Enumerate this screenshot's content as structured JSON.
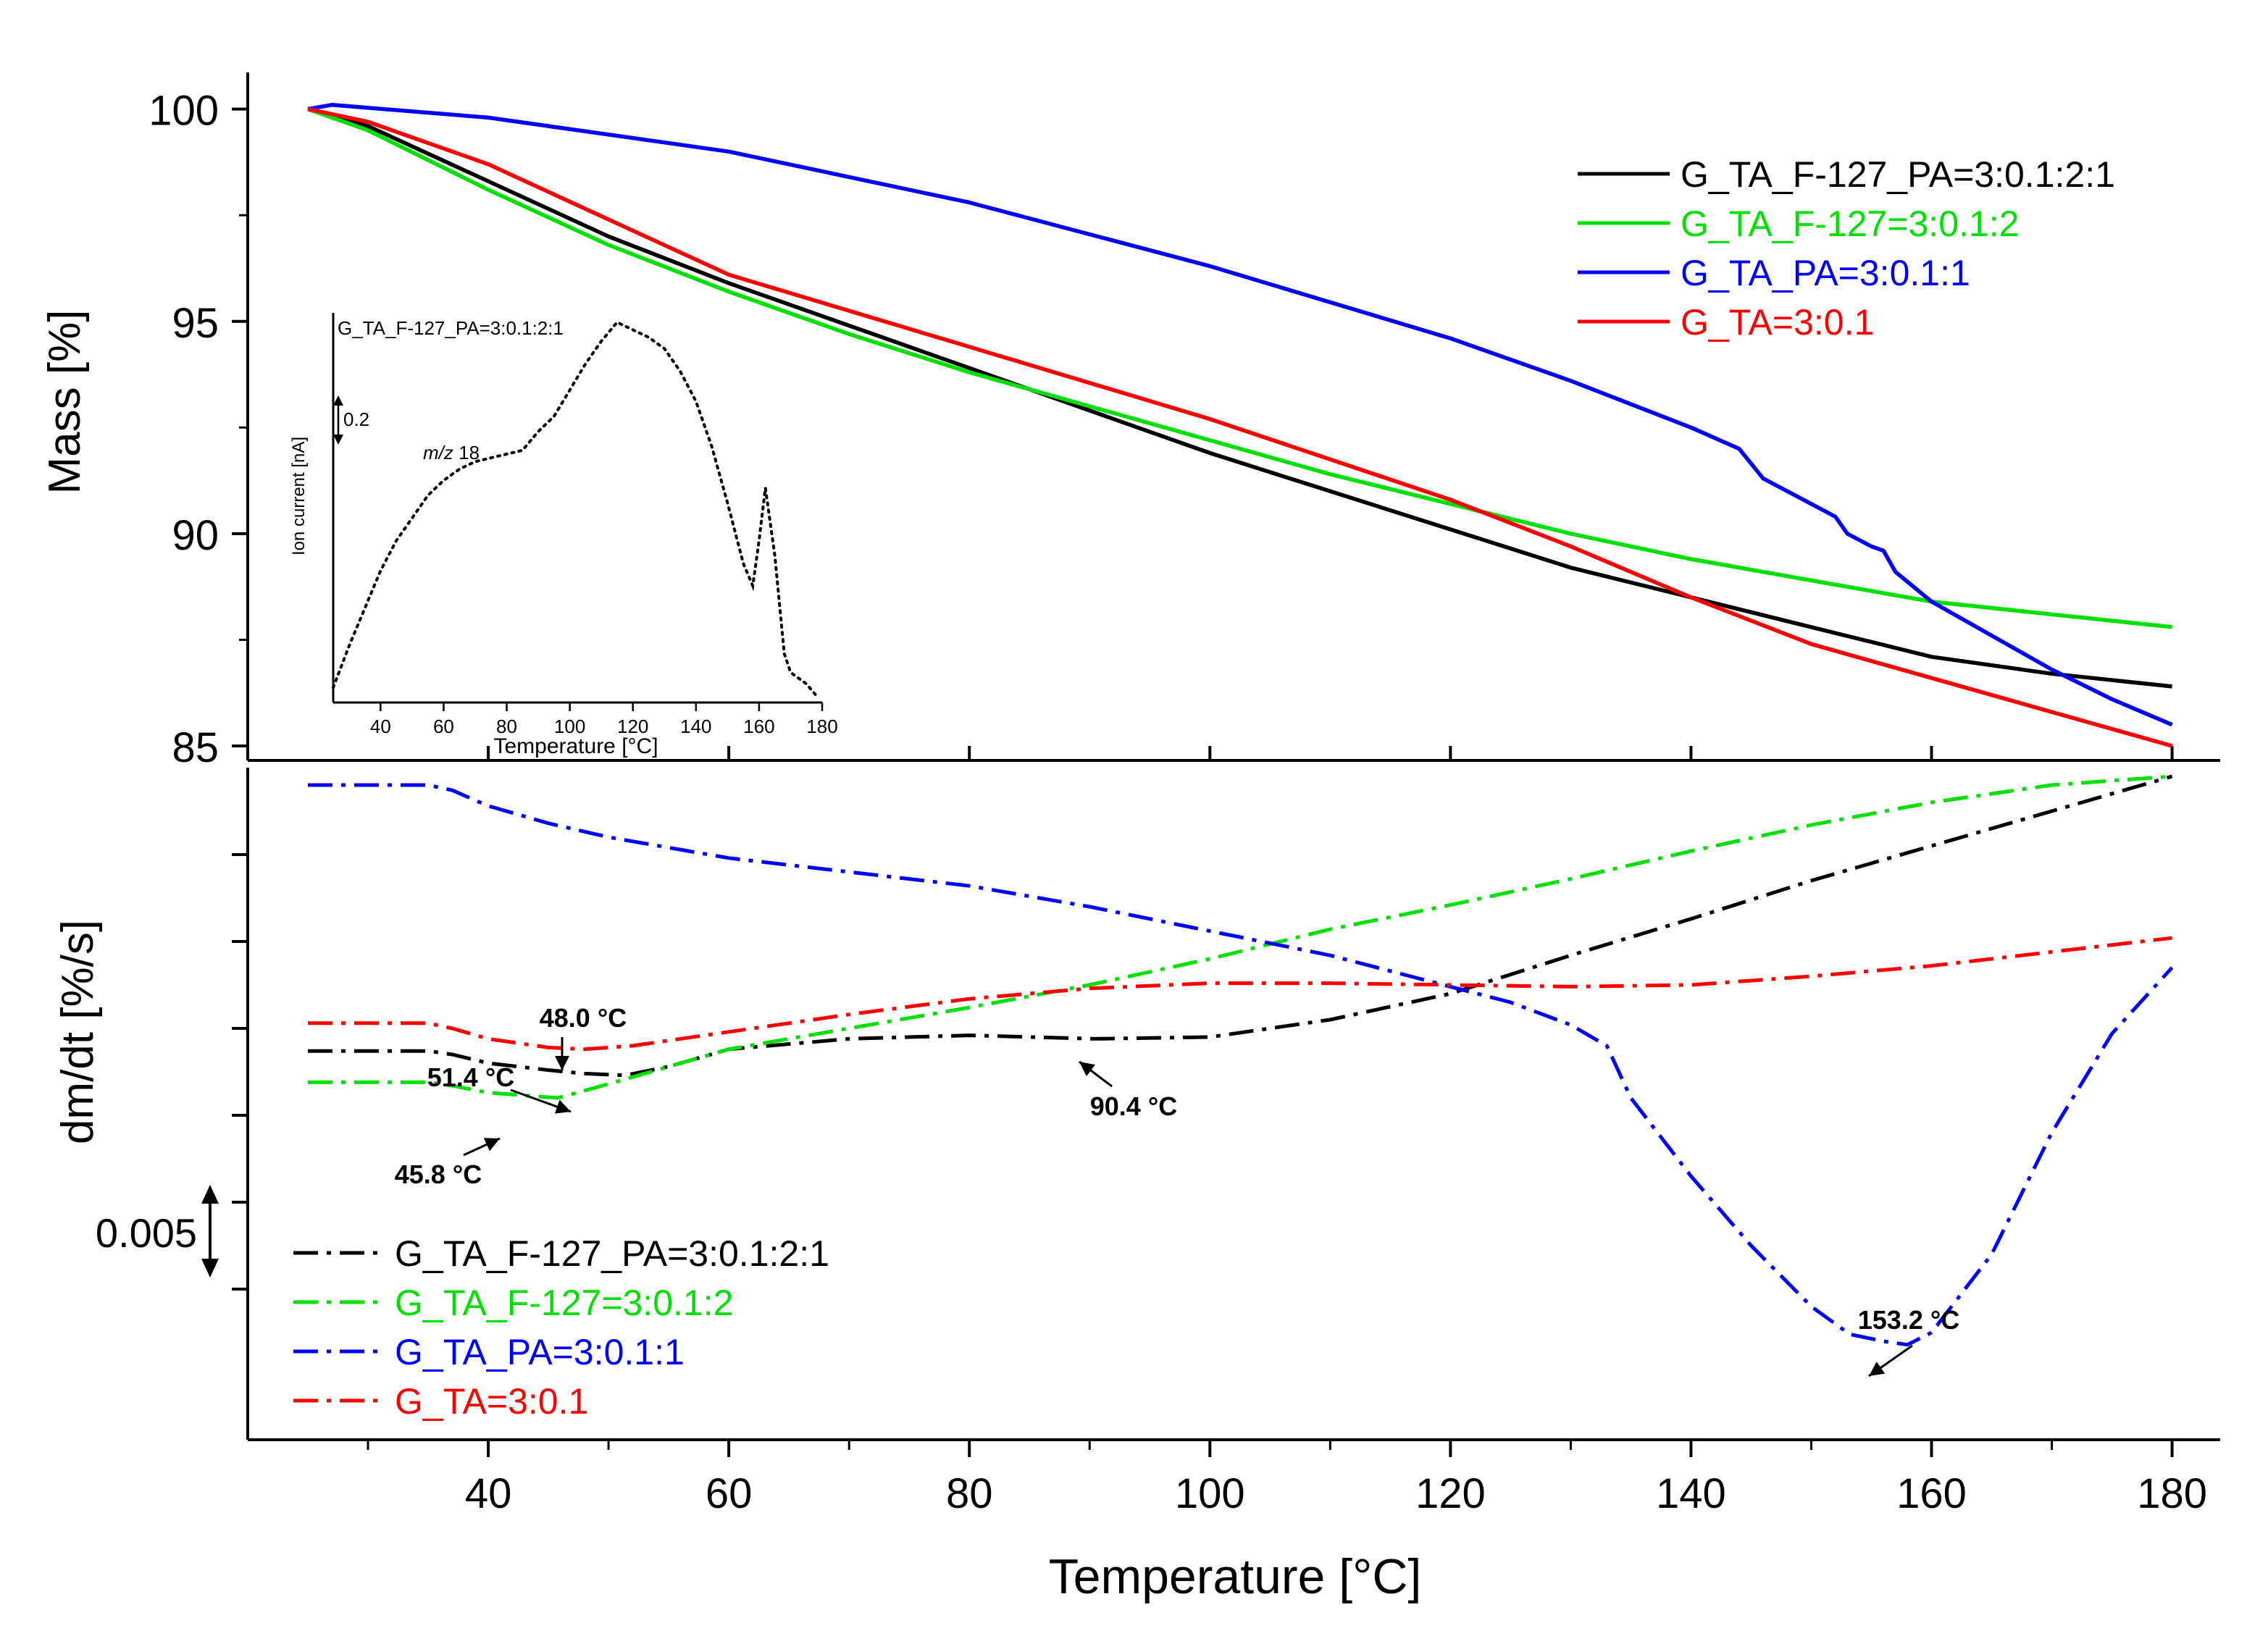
{
  "chart_data": [
    {
      "type": "line",
      "title": "",
      "ylabel": "Mass [%]",
      "xlabel": "Temperature [°C]",
      "xlim": [
        20,
        184
      ],
      "ylim": [
        85,
        101
      ],
      "x_ticks": [
        40,
        60,
        80,
        100,
        120,
        140,
        160,
        180
      ],
      "y_ticks": [
        85,
        90,
        95,
        100
      ],
      "legend_position": "top-right",
      "series": [
        {
          "name": "G_TA_F-127_PA=3:0.1:2:1",
          "color": "#000000",
          "x": [
            25,
            30,
            40,
            50,
            60,
            70,
            80,
            90,
            100,
            110,
            120,
            130,
            140,
            150,
            160,
            170,
            180
          ],
          "y": [
            100,
            99.6,
            98.3,
            97.0,
            95.9,
            94.9,
            93.9,
            92.9,
            91.9,
            91.0,
            90.1,
            89.2,
            88.5,
            87.8,
            87.1,
            86.7,
            86.4
          ]
        },
        {
          "name": "G_TA_F-127=3:0.1:2",
          "color": "#00e000",
          "x": [
            25,
            30,
            40,
            50,
            60,
            70,
            80,
            90,
            100,
            110,
            120,
            130,
            140,
            150,
            160,
            170,
            180
          ],
          "y": [
            100,
            99.5,
            98.1,
            96.8,
            95.7,
            94.7,
            93.8,
            93.0,
            92.2,
            91.4,
            90.7,
            90.0,
            89.4,
            88.9,
            88.4,
            88.1,
            87.8
          ]
        },
        {
          "name": "G_TA_PA=3:0.1:1",
          "color": "#0000ff",
          "x": [
            25,
            27,
            40,
            60,
            80,
            100,
            120,
            130,
            140,
            144,
            146,
            150,
            152,
            153,
            155,
            156,
            157,
            160,
            165,
            170,
            175,
            180
          ],
          "y": [
            100,
            100.1,
            99.8,
            99.0,
            97.8,
            96.3,
            94.6,
            93.6,
            92.5,
            92.0,
            91.3,
            90.7,
            90.4,
            90.0,
            89.7,
            89.6,
            89.1,
            88.4,
            87.6,
            86.8,
            86.1,
            85.5
          ]
        },
        {
          "name": "G_TA=3:0.1",
          "color": "#ff0000",
          "x": [
            25,
            30,
            40,
            60,
            80,
            100,
            120,
            130,
            140,
            150,
            160,
            170,
            180
          ],
          "y": [
            100,
            99.7,
            98.7,
            96.1,
            94.4,
            92.7,
            90.8,
            89.7,
            88.5,
            87.4,
            86.6,
            85.8,
            85.0
          ]
        }
      ]
    },
    {
      "type": "line",
      "title": "",
      "ylabel": "dm/dt [%/s]",
      "xlabel": "Temperature [°C]",
      "xlim": [
        20,
        184
      ],
      "scale_bar_label": "0.005",
      "legend_position": "bottom-left",
      "series": [
        {
          "name": "G_TA_F-127_PA=3:0.1:2:1",
          "color": "#000000",
          "x": [
            25,
            35,
            37,
            40,
            45,
            48,
            51.4,
            55,
            60,
            70,
            80,
            90.4,
            100,
            110,
            120,
            130,
            140,
            150,
            160,
            170,
            180
          ],
          "y": [
            -0.0013,
            -0.0013,
            -0.0015,
            -0.002,
            -0.0024,
            -0.0026,
            -0.0027,
            -0.0022,
            -0.0012,
            -0.0006,
            -0.0004,
            -0.0006,
            -0.0005,
            0.0005,
            0.002,
            0.0042,
            0.0063,
            0.0085,
            0.0105,
            0.0125,
            0.0145
          ]
        },
        {
          "name": "G_TA_F-127=3:0.1:2",
          "color": "#00e000",
          "x": [
            25,
            35,
            37,
            40,
            45.8,
            50,
            55,
            60,
            70,
            80,
            90,
            100,
            110,
            120,
            130,
            140,
            150,
            160,
            170,
            180
          ],
          "y": [
            -0.0031,
            -0.0031,
            -0.0033,
            -0.0037,
            -0.004,
            -0.0032,
            -0.0022,
            -0.0012,
            0.0,
            0.0012,
            0.0025,
            0.004,
            0.0057,
            0.0071,
            0.0086,
            0.0102,
            0.0117,
            0.013,
            0.014,
            0.0145
          ]
        },
        {
          "name": "G_TA_PA=3:0.1:1",
          "color": "#0000ff",
          "x": [
            25,
            35,
            37,
            40,
            45,
            50,
            60,
            70,
            80,
            90,
            100,
            110,
            120,
            125,
            130,
            133,
            135,
            140,
            145,
            150,
            153.2,
            156,
            158,
            160,
            165,
            170,
            175,
            180
          ],
          "y": [
            0.014,
            0.014,
            0.0137,
            0.0128,
            0.0118,
            0.011,
            0.0098,
            0.009,
            0.0082,
            0.007,
            0.0056,
            0.0042,
            0.0024,
            0.0015,
            0.0002,
            -0.001,
            -0.004,
            -0.0085,
            -0.0125,
            -0.016,
            -0.0176,
            -0.018,
            -0.0182,
            -0.0175,
            -0.013,
            -0.006,
            -0.0003,
            0.0035
          ]
        },
        {
          "name": "G_TA=3:0.1",
          "color": "#ff0000",
          "x": [
            25,
            35,
            37,
            40,
            45,
            48,
            52,
            60,
            70,
            80,
            90,
            100,
            110,
            120,
            130,
            140,
            150,
            160,
            170,
            180
          ],
          "y": [
            0.0003,
            0.0003,
            0.0,
            -0.0006,
            -0.0011,
            -0.0012,
            -0.001,
            -0.0002,
            0.0008,
            0.0017,
            0.0023,
            0.0026,
            0.0026,
            0.0025,
            0.0024,
            0.0025,
            0.003,
            0.0036,
            0.0044,
            0.0052
          ]
        }
      ],
      "annotations": [
        {
          "text": "48.0 °C",
          "x": 48.0,
          "series": "G_TA=3:0.1"
        },
        {
          "text": "51.4 °C",
          "x": 51.4,
          "series": "G_TA_F-127_PA=3:0.1:2:1"
        },
        {
          "text": "45.8 °C",
          "x": 45.8,
          "series": "G_TA_F-127=3:0.1:2"
        },
        {
          "text": "90.4 °C",
          "x": 90.4,
          "series": "G_TA_F-127_PA=3:0.1:2:1"
        },
        {
          "text": "153.2 °C",
          "x": 153.2,
          "series": "G_TA_PA=3:0.1:1"
        }
      ]
    },
    {
      "type": "line",
      "title": "G_TA_F-127_PA=3:0.1:2:1",
      "ylabel": "Ion current [nA]",
      "xlabel": "Temperature [°C]",
      "xlim": [
        25,
        180
      ],
      "x_ticks": [
        40,
        60,
        80,
        100,
        120,
        140,
        160,
        180
      ],
      "scale_bar_label": "0.2",
      "annotation_italic": "m/z",
      "annotation_rest": " 18",
      "legend_position": "none",
      "series": [
        {
          "name": "m/z 18",
          "color": "#000000",
          "dotted": true,
          "x": [
            25,
            30,
            35,
            40,
            45,
            50,
            55,
            60,
            65,
            70,
            75,
            80,
            85,
            90,
            95,
            100,
            105,
            110,
            115,
            120,
            125,
            130,
            135,
            140,
            145,
            150,
            155,
            158,
            160,
            162,
            165,
            168,
            170,
            175,
            178
          ],
          "y": [
            0.03,
            0.14,
            0.24,
            0.34,
            0.42,
            0.48,
            0.54,
            0.58,
            0.61,
            0.63,
            0.64,
            0.65,
            0.66,
            0.71,
            0.75,
            0.82,
            0.89,
            0.95,
            1.0,
            0.98,
            0.96,
            0.93,
            0.87,
            0.79,
            0.67,
            0.52,
            0.36,
            0.3,
            0.42,
            0.56,
            0.38,
            0.12,
            0.07,
            0.04,
            0.01
          ]
        }
      ]
    }
  ]
}
